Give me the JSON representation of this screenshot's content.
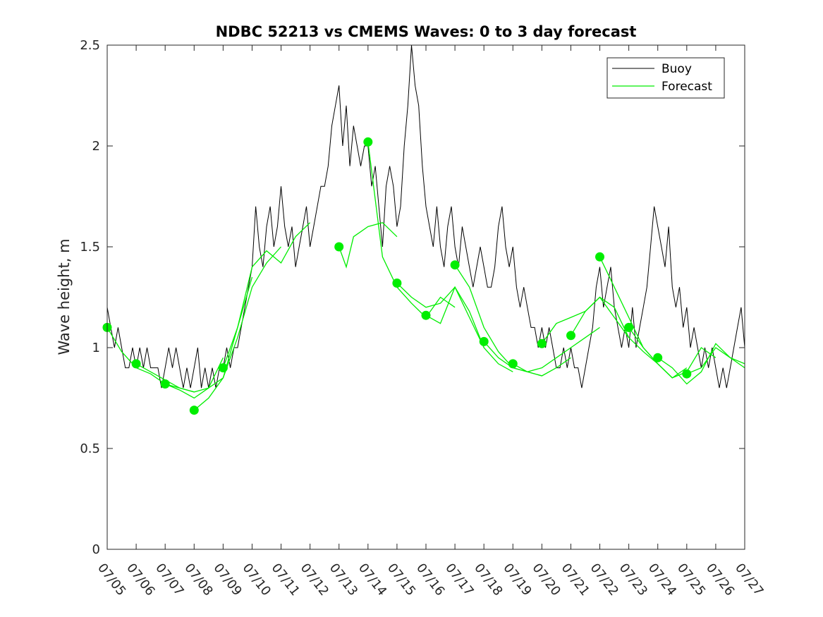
{
  "chart_data": {
    "type": "line",
    "title": "NDBC 52213 vs CMEMS Waves: 0 to 3 day forecast",
    "xlabel": "",
    "ylabel": "Wave height, m",
    "x_range": [
      "07/05",
      "07/27"
    ],
    "ylim": [
      0,
      2.5
    ],
    "y_ticks": [
      0,
      0.5,
      1,
      1.5,
      2,
      2.5
    ],
    "y_tick_labels": [
      "0",
      "0.5",
      "1",
      "1.5",
      "2",
      "2.5"
    ],
    "x_tick_labels": [
      "07/05",
      "07/06",
      "07/07",
      "07/08",
      "07/09",
      "07/10",
      "07/11",
      "07/12",
      "07/13",
      "07/14",
      "07/15",
      "07/16",
      "07/17",
      "07/18",
      "07/19",
      "07/20",
      "07/21",
      "07/22",
      "07/23",
      "07/24",
      "07/25",
      "07/26",
      "07/27"
    ],
    "grid": false,
    "legend_position": "top-right",
    "legend": [
      "Buoy",
      "Forecast"
    ],
    "colors": {
      "buoy": "#000000",
      "forecast": "#00ee00"
    },
    "buoy": {
      "day": [
        0,
        0.125,
        0.25,
        0.375,
        0.5,
        0.625,
        0.75,
        0.875,
        1,
        1.125,
        1.25,
        1.375,
        1.5,
        1.625,
        1.75,
        1.875,
        2,
        2.125,
        2.25,
        2.375,
        2.5,
        2.625,
        2.75,
        2.875,
        3,
        3.125,
        3.25,
        3.375,
        3.5,
        3.625,
        3.75,
        3.875,
        4,
        4.125,
        4.25,
        4.375,
        4.5,
        4.625,
        4.75,
        4.875,
        5,
        5.125,
        5.25,
        5.375,
        5.5,
        5.625,
        5.75,
        5.875,
        6,
        6.125,
        6.25,
        6.375,
        6.5,
        6.625,
        6.75,
        6.875,
        7,
        7.125,
        7.25,
        7.375,
        7.5,
        7.625,
        7.75,
        7.875,
        8,
        8.125,
        8.25,
        8.375,
        8.5,
        8.625,
        8.75,
        8.875,
        9,
        9.125,
        9.25,
        9.375,
        9.5,
        9.625,
        9.75,
        9.875,
        10,
        10.125,
        10.25,
        10.375,
        10.5,
        10.625,
        10.75,
        10.875,
        11,
        11.125,
        11.25,
        11.375,
        11.5,
        11.625,
        11.75,
        11.875,
        12,
        12.125,
        12.25,
        12.375,
        12.5,
        12.625,
        12.75,
        12.875,
        13,
        13.125,
        13.25,
        13.375,
        13.5,
        13.625,
        13.75,
        13.875,
        14,
        14.125,
        14.25,
        14.375,
        14.5,
        14.625,
        14.75,
        14.875,
        15,
        15.125,
        15.25,
        15.375,
        15.5,
        15.625,
        15.75,
        15.875,
        16,
        16.125,
        16.25,
        16.375,
        16.5,
        16.625,
        16.75,
        16.875,
        17,
        17.125,
        17.25,
        17.375,
        17.5,
        17.625,
        17.75,
        17.875,
        18,
        18.125,
        18.25,
        18.375,
        18.5,
        18.625,
        18.75,
        18.875,
        19,
        19.125,
        19.25,
        19.375,
        19.5,
        19.625,
        19.75,
        19.875,
        20,
        20.125,
        20.25,
        20.375,
        20.5,
        20.625,
        20.75,
        20.875,
        21,
        21.125,
        21.25,
        21.375,
        21.5,
        21.625,
        21.75,
        21.875,
        22
      ],
      "height": [
        1.2,
        1.1,
        1.0,
        1.1,
        1.0,
        0.9,
        0.9,
        1.0,
        0.9,
        1.0,
        0.9,
        1.0,
        0.9,
        0.9,
        0.9,
        0.8,
        0.9,
        1.0,
        0.9,
        1.0,
        0.9,
        0.8,
        0.9,
        0.8,
        0.9,
        1.0,
        0.8,
        0.9,
        0.8,
        0.9,
        0.8,
        0.9,
        0.9,
        1.0,
        0.9,
        1.0,
        1.0,
        1.1,
        1.2,
        1.3,
        1.4,
        1.7,
        1.5,
        1.4,
        1.6,
        1.7,
        1.5,
        1.6,
        1.8,
        1.6,
        1.5,
        1.6,
        1.4,
        1.5,
        1.6,
        1.7,
        1.5,
        1.6,
        1.7,
        1.8,
        1.8,
        1.9,
        2.1,
        2.2,
        2.3,
        2.0,
        2.2,
        1.9,
        2.1,
        2.0,
        1.9,
        2.0,
        2.0,
        1.8,
        1.9,
        1.7,
        1.5,
        1.8,
        1.9,
        1.8,
        1.6,
        1.7,
        2.0,
        2.2,
        2.5,
        2.3,
        2.2,
        1.9,
        1.7,
        1.6,
        1.5,
        1.7,
        1.5,
        1.4,
        1.6,
        1.7,
        1.5,
        1.4,
        1.6,
        1.5,
        1.4,
        1.3,
        1.4,
        1.5,
        1.4,
        1.3,
        1.3,
        1.4,
        1.6,
        1.7,
        1.5,
        1.4,
        1.5,
        1.3,
        1.2,
        1.3,
        1.2,
        1.1,
        1.1,
        1.0,
        1.1,
        1.0,
        1.1,
        1.0,
        0.9,
        0.9,
        1.0,
        0.9,
        1.0,
        0.9,
        0.9,
        0.8,
        0.9,
        1.0,
        1.1,
        1.3,
        1.4,
        1.2,
        1.3,
        1.4,
        1.2,
        1.1,
        1.0,
        1.1,
        1.0,
        1.2,
        1.0,
        1.1,
        1.2,
        1.3,
        1.5,
        1.7,
        1.6,
        1.5,
        1.4,
        1.6,
        1.3,
        1.2,
        1.3,
        1.1,
        1.2,
        1.0,
        1.1,
        1.0,
        0.9,
        1.0,
        0.9,
        1.0,
        0.9,
        0.8,
        0.9,
        0.8,
        0.9,
        1.0,
        1.1,
        1.2,
        1.0,
        1.1,
        1.0,
        1.1,
        0.9,
        0.9,
        1.0
      ]
    },
    "forecast_markers": [
      {
        "date": "07/05",
        "value": 1.1
      },
      {
        "date": "07/06",
        "value": 0.92
      },
      {
        "date": "07/07",
        "value": 0.82
      },
      {
        "date": "07/08",
        "value": 0.69
      },
      {
        "date": "07/09",
        "value": 0.9
      },
      {
        "date": "07/13",
        "value": 1.5
      },
      {
        "date": "07/14",
        "value": 2.02
      },
      {
        "date": "07/15",
        "value": 1.32
      },
      {
        "date": "07/16",
        "value": 1.16
      },
      {
        "date": "07/17",
        "value": 1.41
      },
      {
        "date": "07/18",
        "value": 1.03
      },
      {
        "date": "07/19",
        "value": 0.92
      },
      {
        "date": "07/20",
        "value": 1.02
      },
      {
        "date": "07/21",
        "value": 1.06
      },
      {
        "date": "07/22",
        "value": 1.45
      },
      {
        "date": "07/23",
        "value": 1.1
      },
      {
        "date": "07/24",
        "value": 0.95
      },
      {
        "date": "07/25",
        "value": 0.87
      }
    ],
    "forecast_runs": [
      {
        "start": "07/05",
        "day_offsets": [
          0,
          0.5,
          1,
          1.5,
          2,
          2.5,
          3
        ],
        "values": [
          1.1,
          0.98,
          0.9,
          0.87,
          0.82,
          0.8,
          0.78
        ]
      },
      {
        "start": "07/06",
        "day_offsets": [
          0,
          0.5,
          1,
          1.5,
          2,
          2.5,
          3
        ],
        "values": [
          0.92,
          0.88,
          0.84,
          0.8,
          0.78,
          0.8,
          0.95
        ]
      },
      {
        "start": "07/07",
        "day_offsets": [
          0,
          0.5,
          1,
          1.5,
          2,
          2.5,
          3
        ],
        "values": [
          0.82,
          0.79,
          0.75,
          0.8,
          0.85,
          1.1,
          1.35
        ]
      },
      {
        "start": "07/08",
        "day_offsets": [
          0,
          0.5,
          1,
          1.5,
          2,
          2.5,
          3
        ],
        "values": [
          0.69,
          0.75,
          0.85,
          1.05,
          1.3,
          1.42,
          1.5
        ]
      },
      {
        "start": "07/09",
        "day_offsets": [
          0,
          0.5,
          1,
          1.5,
          2,
          2.5,
          3
        ],
        "values": [
          0.9,
          1.1,
          1.4,
          1.48,
          1.42,
          1.55,
          1.62
        ]
      },
      {
        "start": "07/13",
        "day_offsets": [
          0,
          0.25,
          0.5,
          1,
          1.5,
          2
        ],
        "values": [
          1.5,
          1.4,
          1.55,
          1.6,
          1.62,
          1.55
        ]
      },
      {
        "start": "07/14",
        "day_offsets": [
          0,
          0.5,
          1,
          1.5,
          2,
          2.5,
          3
        ],
        "values": [
          2.02,
          1.45,
          1.3,
          1.22,
          1.15,
          1.25,
          1.2
        ]
      },
      {
        "start": "07/15",
        "day_offsets": [
          0,
          0.5,
          1,
          1.5,
          2,
          2.5,
          3
        ],
        "values": [
          1.32,
          1.25,
          1.2,
          1.22,
          1.3,
          1.15,
          1.0
        ]
      },
      {
        "start": "07/16",
        "day_offsets": [
          0,
          0.5,
          1,
          1.5,
          2,
          2.5,
          3
        ],
        "values": [
          1.16,
          1.12,
          1.3,
          1.18,
          1.0,
          0.92,
          0.88
        ]
      },
      {
        "start": "07/17",
        "day_offsets": [
          0,
          0.5,
          1,
          1.5,
          2,
          2.5,
          3
        ],
        "values": [
          1.41,
          1.3,
          1.1,
          0.98,
          0.9,
          0.88,
          0.86
        ]
      },
      {
        "start": "07/18",
        "day_offsets": [
          0,
          0.5,
          1,
          1.5,
          2,
          2.5,
          3
        ],
        "values": [
          1.03,
          0.95,
          0.9,
          0.88,
          0.86,
          0.9,
          0.95
        ]
      },
      {
        "start": "07/19",
        "day_offsets": [
          0,
          0.5,
          1,
          1.5,
          2,
          2.5,
          3
        ],
        "values": [
          0.92,
          0.88,
          0.9,
          0.95,
          1.0,
          1.05,
          1.1
        ]
      },
      {
        "start": "07/20",
        "day_offsets": [
          0,
          0.5,
          1,
          1.5,
          2,
          2.5,
          3
        ],
        "values": [
          1.02,
          1.12,
          1.15,
          1.18,
          1.25,
          1.2,
          1.05
        ]
      },
      {
        "start": "07/21",
        "day_offsets": [
          0,
          0.5,
          1,
          1.5,
          2,
          2.5,
          3
        ],
        "values": [
          1.06,
          1.18,
          1.25,
          1.15,
          1.05,
          0.98,
          0.92
        ]
      },
      {
        "start": "07/22",
        "day_offsets": [
          0,
          0.5,
          1,
          1.5,
          2,
          2.5,
          3
        ],
        "values": [
          1.45,
          1.3,
          1.15,
          1.0,
          0.92,
          0.85,
          0.9
        ]
      },
      {
        "start": "07/23",
        "day_offsets": [
          0,
          0.5,
          1,
          1.5,
          2,
          2.5,
          3
        ],
        "values": [
          1.1,
          1.0,
          0.92,
          0.85,
          0.88,
          1.0,
          0.95
        ]
      },
      {
        "start": "07/24",
        "day_offsets": [
          0,
          0.5,
          1,
          1.5,
          2,
          2.5,
          3
        ],
        "values": [
          0.95,
          0.9,
          0.82,
          0.88,
          1.02,
          0.95,
          0.92
        ]
      },
      {
        "start": "07/25",
        "day_offsets": [
          0,
          0.5,
          1,
          1.5,
          2
        ],
        "values": [
          0.87,
          0.9,
          1.0,
          0.95,
          0.9
        ]
      }
    ]
  }
}
